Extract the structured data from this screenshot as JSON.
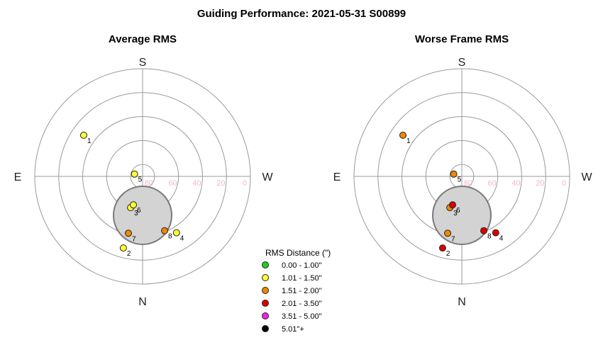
{
  "title": "Guiding Performance: 2021-05-31 S00899",
  "directions": {
    "top": "S",
    "bottom": "N",
    "left": "E",
    "right": "W"
  },
  "alt_ticks": [
    "80",
    "60",
    "40",
    "20",
    "0"
  ],
  "legend": {
    "title": "RMS Distance (\")",
    "items": [
      {
        "label": "0.00 - 1.00\"",
        "color": "#22cc22"
      },
      {
        "label": "1.01 - 1.50\"",
        "color": "#ffff33"
      },
      {
        "label": "1.51 - 2.00\"",
        "color": "#ee8800"
      },
      {
        "label": "2.01 - 3.50\"",
        "color": "#dd0000"
      },
      {
        "label": "3.51 - 5.00\"",
        "color": "#ee22ee"
      },
      {
        "label": "5.01\"+",
        "color": "#000000"
      }
    ]
  },
  "colors": {
    "ring": "#9a9a9a",
    "axis": "#9a9a9a",
    "moon_fill": "#d3d3d3",
    "moon_stroke": "#7a7a7a",
    "alt_tick": "#f4b5c8"
  },
  "chart_data": [
    {
      "type": "scatter",
      "projection": "polar-sky",
      "title": "Average RMS",
      "r_axis": "altitude (deg)",
      "r_range": [
        90,
        0
      ],
      "points": [
        {
          "label": "1",
          "azimuth_deg": 55,
          "altitude_deg": 30,
          "category": "1.01 - 1.50\""
        },
        {
          "label": "2",
          "azimuth_deg": 165,
          "altitude_deg": 28,
          "category": "1.01 - 1.50\""
        },
        {
          "label": "3",
          "azimuth_deg": 159,
          "altitude_deg": 62,
          "category": "1.01 - 1.50\""
        },
        {
          "label": "4",
          "azimuth_deg": 211,
          "altitude_deg": 35,
          "category": "1.01 - 1.50\""
        },
        {
          "label": "5",
          "azimuth_deg": 74,
          "altitude_deg": 83,
          "category": "1.01 - 1.50\""
        },
        {
          "label": "6",
          "azimuth_deg": 162,
          "altitude_deg": 65,
          "category": "1.01 - 1.50\""
        },
        {
          "label": "7",
          "azimuth_deg": 166,
          "altitude_deg": 41,
          "category": "1.51 - 2.00\""
        },
        {
          "label": "8",
          "azimuth_deg": 202,
          "altitude_deg": 41,
          "category": "1.51 - 2.00\""
        }
      ]
    },
    {
      "type": "scatter",
      "projection": "polar-sky",
      "title": "Worse Frame RMS",
      "r_axis": "altitude (deg)",
      "r_range": [
        90,
        0
      ],
      "points": [
        {
          "label": "1",
          "azimuth_deg": 55,
          "altitude_deg": 30,
          "category": "1.51 - 2.00\""
        },
        {
          "label": "2",
          "azimuth_deg": 165,
          "altitude_deg": 28,
          "category": "2.01 - 3.50\""
        },
        {
          "label": "3",
          "azimuth_deg": 159,
          "altitude_deg": 62,
          "category": "1.51 - 2.00\""
        },
        {
          "label": "4",
          "azimuth_deg": 211,
          "altitude_deg": 35,
          "category": "2.01 - 3.50\""
        },
        {
          "label": "5",
          "azimuth_deg": 74,
          "altitude_deg": 83,
          "category": "1.51 - 2.00\""
        },
        {
          "label": "6",
          "azimuth_deg": 162,
          "altitude_deg": 65,
          "category": "2.01 - 3.50\""
        },
        {
          "label": "7",
          "azimuth_deg": 166,
          "altitude_deg": 41,
          "category": "1.51 - 2.00\""
        },
        {
          "label": "8",
          "azimuth_deg": 202,
          "altitude_deg": 41,
          "category": "2.01 - 3.50\""
        }
      ]
    }
  ]
}
